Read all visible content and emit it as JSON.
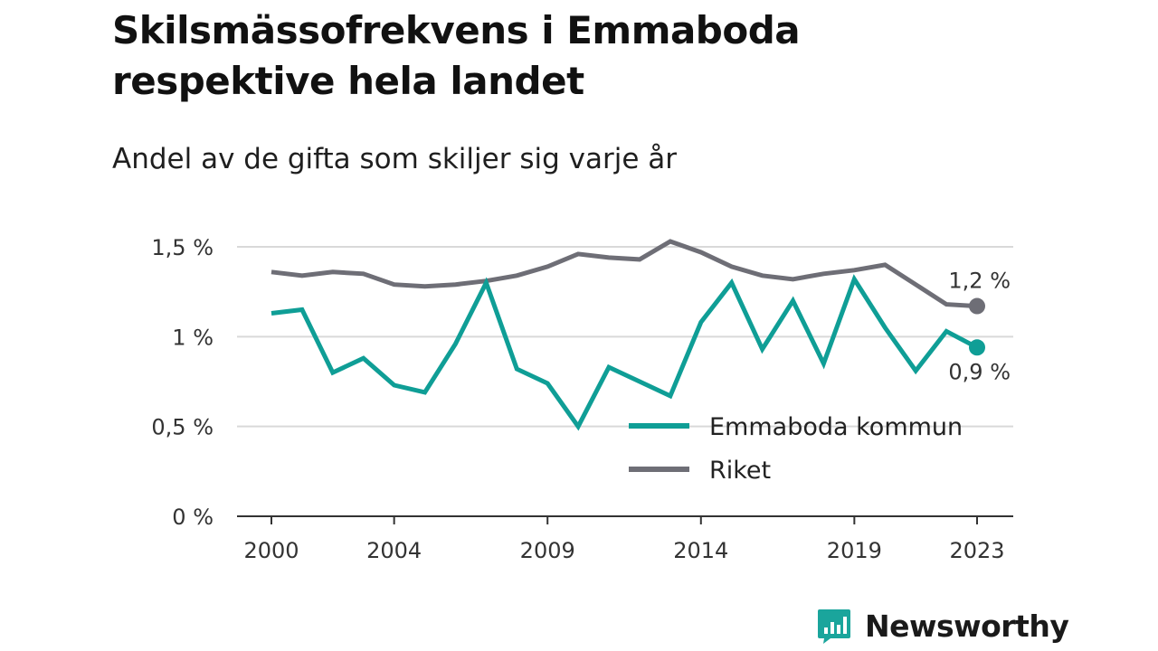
{
  "chart_data": {
    "type": "line",
    "title": "Skilsmässofrekvens i Emmaboda respektive hela landet",
    "subtitle": "Andel av de gifta som skiljer sig varje år",
    "x": [
      2000,
      2001,
      2002,
      2003,
      2004,
      2005,
      2006,
      2007,
      2008,
      2009,
      2010,
      2011,
      2012,
      2013,
      2014,
      2015,
      2016,
      2017,
      2018,
      2019,
      2020,
      2021,
      2022,
      2023
    ],
    "x_tick_labels": [
      "2000",
      "2004",
      "2009",
      "2014",
      "2019",
      "2023"
    ],
    "x_tick_values": [
      2000,
      2004,
      2009,
      2014,
      2019,
      2023
    ],
    "y_ticks": [
      0,
      0.5,
      1,
      1.5
    ],
    "y_tick_labels": [
      "0 %",
      "0,5 %",
      "1 %",
      "1,5 %"
    ],
    "ylim": [
      0,
      1.5
    ],
    "grid": true,
    "legend_position": "bottom-right",
    "series": [
      {
        "name": "Emmaboda kommun",
        "color": "#0f9e96",
        "values": [
          1.13,
          1.15,
          0.8,
          0.88,
          0.73,
          0.69,
          0.96,
          1.3,
          0.82,
          0.74,
          0.5,
          0.83,
          0.75,
          0.67,
          1.08,
          1.3,
          0.93,
          1.2,
          0.85,
          1.32,
          1.05,
          0.81,
          1.03,
          0.94
        ],
        "end_label": "0,9 %"
      },
      {
        "name": "Riket",
        "color": "#6e6e76",
        "values": [
          1.36,
          1.34,
          1.36,
          1.35,
          1.29,
          1.28,
          1.29,
          1.31,
          1.34,
          1.39,
          1.46,
          1.44,
          1.43,
          1.53,
          1.47,
          1.39,
          1.34,
          1.32,
          1.35,
          1.37,
          1.4,
          1.29,
          1.18,
          1.17
        ],
        "end_label": "1,2 %"
      }
    ]
  },
  "brand": {
    "name": "Newsworthy",
    "color": "#1aa59c",
    "icon": "newsworthy-logo-icon"
  }
}
